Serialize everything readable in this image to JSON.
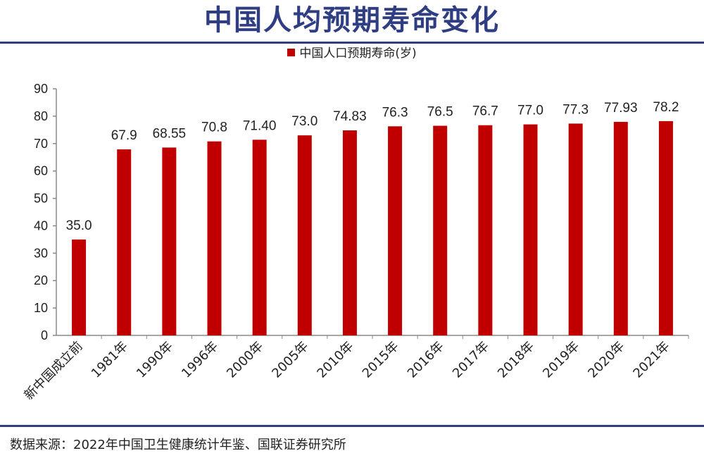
{
  "title": "中国人均预期寿命变化",
  "source": "数据来源：2022年中国卫生健康统计年鉴、国联证券研究所",
  "colors": {
    "title": "#2f3e82",
    "rule": "#2f3e82",
    "bar": "#c00000",
    "text": "#222222",
    "axis": "#888888"
  },
  "chart_data": {
    "type": "bar",
    "categories": [
      "新中国成立前",
      "1981年",
      "1990年",
      "1996年",
      "2000年",
      "2005年",
      "2010年",
      "2015年",
      "2016年",
      "2017年",
      "2018年",
      "2019年",
      "2020年",
      "2021年"
    ],
    "series": [
      {
        "name": "中国人口预期寿命(岁)",
        "values": [
          35.0,
          67.9,
          68.55,
          70.8,
          71.4,
          73.0,
          74.83,
          76.3,
          76.5,
          76.7,
          77.0,
          77.3,
          77.93,
          78.2
        ],
        "labels": [
          "35.0",
          "67.9",
          "68.55",
          "70.8",
          "71.40",
          "73.0",
          "74.83",
          "76.3",
          "76.5",
          "76.7",
          "77.0",
          "77.3",
          "77.93",
          "78.2"
        ]
      }
    ],
    "ylim": [
      0,
      90
    ],
    "yticks": [
      0,
      10,
      20,
      30,
      40,
      50,
      60,
      70,
      80,
      90
    ],
    "grid": false,
    "legend": "top-center",
    "xlabel": "",
    "ylabel": ""
  }
}
